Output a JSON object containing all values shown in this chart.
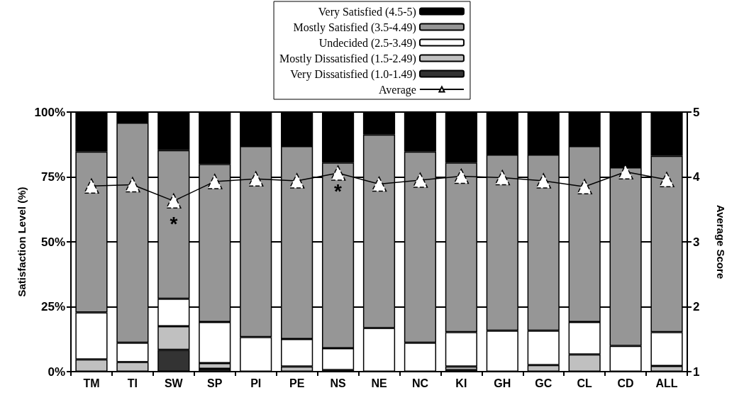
{
  "chart_data": {
    "type": "bar",
    "stacked": true,
    "categories": [
      "TM",
      "TI",
      "SW",
      "SP",
      "PI",
      "PE",
      "NS",
      "NE",
      "NC",
      "KI",
      "GH",
      "GC",
      "CL",
      "CD",
      "ALL"
    ],
    "series": [
      {
        "name": "Very Dissatisfied (1.0-1.49)",
        "color": "#333333",
        "values": [
          0,
          0,
          8.4,
          1.1,
          null,
          0,
          0.6,
          0,
          0,
          0.6,
          0,
          0,
          0,
          0,
          null
        ]
      },
      {
        "name": "Mostly Dissatisfied (1.5-2.49)",
        "color": "#c0c0c0",
        "values": [
          4.7,
          3.7,
          9.1,
          2.2,
          0,
          2.0,
          0,
          0,
          0,
          1.4,
          0,
          2.5,
          6.6,
          0,
          2.2
        ]
      },
      {
        "name": "Undecided (2.5-3.49)",
        "color": "#ffffff",
        "values": [
          18.1,
          7.4,
          10.6,
          15.8,
          13.3,
          10.6,
          8.4,
          16.8,
          11.1,
          13.2,
          15.8,
          13.3,
          12.5,
          9.9,
          13.0
        ]
      },
      {
        "name": "Mostly Satisfied (3.5-4.49)",
        "color": "#969696",
        "values": [
          62.0,
          84.8,
          57.2,
          60.9,
          73.6,
          74.3,
          71.5,
          74.5,
          73.7,
          65.3,
          67.8,
          67.8,
          67.8,
          68.8,
          67.9
        ]
      },
      {
        "name": "Very Satisfied (4.5-5)",
        "color": "#000000",
        "values": [
          15.2,
          4.1,
          14.7,
          20.0,
          13.1,
          13.1,
          19.5,
          8.7,
          15.2,
          19.5,
          16.4,
          16.4,
          13.1,
          21.3,
          16.9
        ]
      },
      {
        "name": "Average",
        "type": "line",
        "axis": "y2",
        "color": "#000000",
        "marker": "triangle",
        "values": [
          3.86,
          3.88,
          3.63,
          3.93,
          3.97,
          3.94,
          4.06,
          3.89,
          3.95,
          4.01,
          3.99,
          3.94,
          3.85,
          4.08,
          3.96
        ]
      }
    ],
    "ylabel": "Satisfaction Level (%)",
    "y2label": "Average Score",
    "ylim": [
      0,
      100
    ],
    "yticks": [
      {
        "value": 0,
        "label": "0%"
      },
      {
        "value": 25,
        "label": "25%"
      },
      {
        "value": 50,
        "label": "50%"
      },
      {
        "value": 75,
        "label": "75%"
      },
      {
        "value": 100,
        "label": "100%"
      }
    ],
    "y2lim": [
      1,
      5
    ],
    "y2ticks": [
      1,
      2,
      3,
      4,
      5
    ],
    "grid": "y",
    "legend": "top",
    "annotations": [
      "*",
      "*"
    ]
  }
}
